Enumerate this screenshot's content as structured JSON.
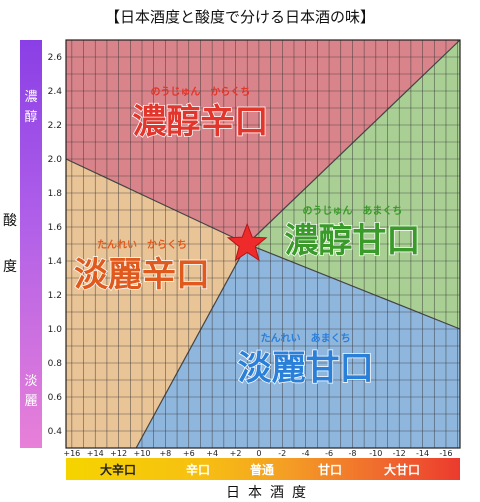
{
  "title": "【日本酒度と酸度で分ける日本酒の味】",
  "chart_data": {
    "type": "scatter",
    "title": "【日本酒度と酸度で分ける日本酒の味】",
    "xlabel": "日本酒度",
    "ylabel": "酸度",
    "xlim": [
      16.5,
      -17.2
    ],
    "ylim": [
      0.3,
      2.7
    ],
    "x_ticks": [
      16,
      14,
      12,
      10,
      8,
      6,
      4,
      2,
      0,
      -2,
      -4,
      -6,
      -8,
      -10,
      -12,
      -14,
      -16
    ],
    "x_tick_labels": [
      "+16",
      "+14",
      "+12",
      "+10",
      "+8",
      "+6",
      "+4",
      "+2",
      "0",
      "-2",
      "-4",
      "-6",
      "-8",
      "-10",
      "-12",
      "-14",
      "-16"
    ],
    "y_ticks": [
      0.4,
      0.6,
      0.8,
      1.0,
      1.2,
      1.4,
      1.6,
      1.8,
      2.0,
      2.2,
      2.4,
      2.6
    ],
    "y_tick_labels": [
      "0.4",
      "0.6",
      "0.8",
      "1.0",
      "1.2",
      "1.4",
      "1.6",
      "1.8",
      "2.0",
      "2.2",
      "2.4",
      "2.6"
    ],
    "grid": true,
    "center_point": {
      "x": 1,
      "y": 1.5
    },
    "regions": [
      {
        "label": "濃醇辛口",
        "ruby": "のうじゅん　からくち",
        "color": "#d9848a",
        "text_color": "#e2352b",
        "label_x": 5,
        "label_y": 2.2
      },
      {
        "label": "濃醇甘口",
        "ruby": "のうじゅん　あまくち",
        "color": "#a9cf94",
        "text_color": "#3a9a2a",
        "label_x": -8,
        "label_y": 1.5
      },
      {
        "label": "淡麗辛口",
        "ruby": "たんれい　からくち",
        "color": "#e9c497",
        "text_color": "#e05a1e",
        "label_x": 10,
        "label_y": 1.3
      },
      {
        "label": "淡麗甘口",
        "ruby": "たんれい　あまくち",
        "color": "#8fb6dd",
        "text_color": "#2a7fd8",
        "label_x": -4,
        "label_y": 0.75
      }
    ],
    "vertical_scale": {
      "top": "濃醇",
      "bottom": "淡麗"
    },
    "horizontal_scale": [
      "大辛口",
      "辛口",
      "普通",
      "甘口",
      "大甘口"
    ]
  },
  "axis_side_label": "酸度",
  "colors": {
    "star": "#ee2a2a",
    "grid": "#333333",
    "title": "#111111"
  }
}
